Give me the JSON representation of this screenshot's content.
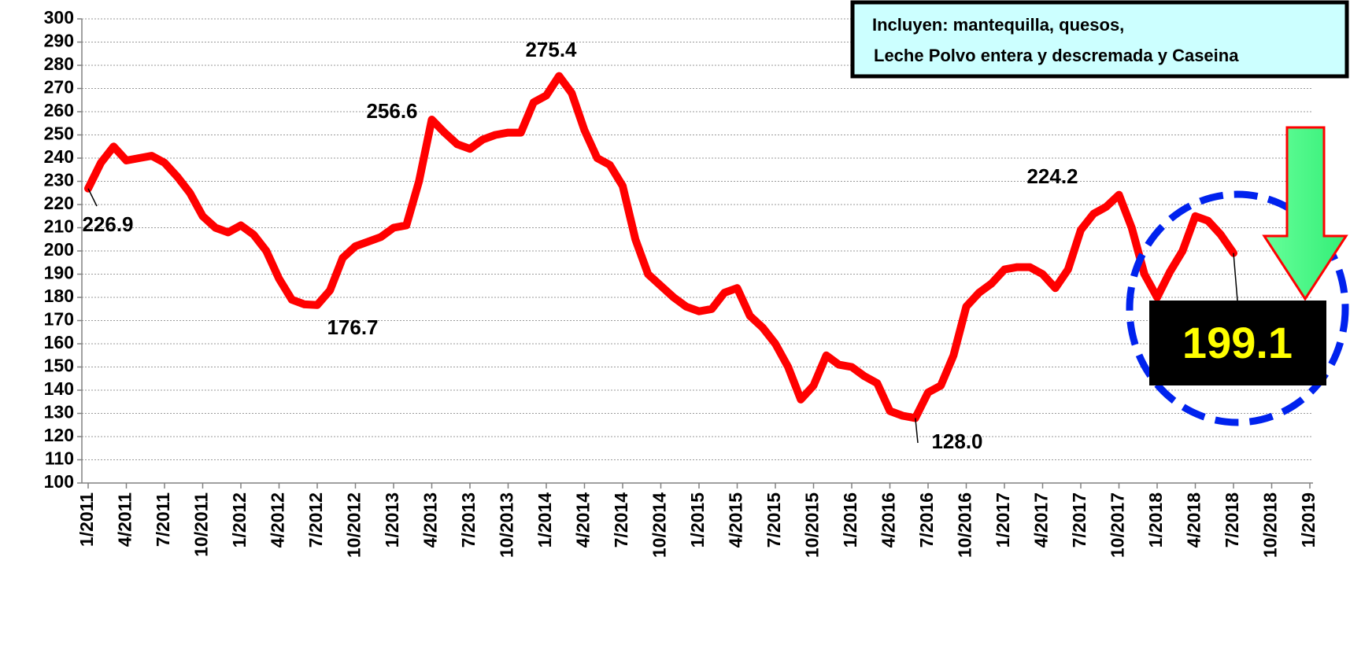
{
  "chart_data": {
    "type": "line",
    "categories": [
      "1/2011",
      null,
      null,
      "4/2011",
      null,
      null,
      "7/2011",
      null,
      null,
      "10/2011",
      null,
      null,
      "1/2012",
      null,
      null,
      "4/2012",
      null,
      null,
      "7/2012",
      null,
      null,
      "10/2012",
      null,
      null,
      "1/2013",
      null,
      null,
      "4/2013",
      null,
      null,
      "7/2013",
      null,
      null,
      "10/2013",
      null,
      null,
      "1/2014",
      null,
      null,
      "4/2014",
      null,
      null,
      "7/2014",
      null,
      null,
      "10/2014",
      null,
      null,
      "1/2015",
      null,
      null,
      "4/2015",
      null,
      null,
      "7/2015",
      null,
      null,
      "10/2015",
      null,
      null,
      "1/2016",
      null,
      null,
      "4/2016",
      null,
      null,
      "7/2016",
      null,
      null,
      "10/2016",
      null,
      null,
      "1/2017",
      null,
      null,
      "4/2017",
      null,
      null,
      "7/2017",
      null,
      null,
      "10/2017",
      null,
      null,
      "1/2018",
      null,
      null,
      "4/2018",
      null,
      null,
      "7/2018",
      null,
      null,
      "10/2018",
      null,
      null,
      "1/2019"
    ],
    "series": [
      {
        "color": "#ff0000",
        "values": [
          226.9,
          238,
          245,
          239,
          240,
          241,
          238,
          232,
          225,
          215,
          210,
          208,
          211,
          207,
          200,
          188,
          179,
          177,
          176.7,
          183,
          197,
          202,
          204,
          206,
          210,
          211,
          230,
          256.6,
          251,
          246,
          244,
          248,
          250,
          251,
          251,
          264,
          267,
          275.4,
          268,
          252,
          240,
          237,
          228,
          205,
          190,
          185,
          180,
          176,
          174,
          175,
          182,
          184,
          172,
          167,
          160,
          150,
          136,
          142,
          155,
          151,
          150,
          146,
          143,
          131,
          129,
          128,
          139,
          142,
          155,
          176,
          182,
          186,
          192,
          193,
          193,
          190,
          184,
          192,
          209,
          216,
          219,
          224.2,
          210,
          190,
          180,
          191,
          200,
          215,
          213,
          207,
          199.1,
          null,
          null,
          null,
          null,
          null,
          null
        ],
        "value_labels": [
          "226.9",
          null,
          null,
          null,
          null,
          null,
          null,
          null,
          null,
          null,
          null,
          null,
          null,
          null,
          null,
          null,
          null,
          null,
          "176.7",
          null,
          null,
          null,
          null,
          null,
          null,
          null,
          null,
          "256.6",
          null,
          null,
          null,
          null,
          null,
          null,
          null,
          null,
          null,
          "275.4",
          null,
          null,
          null,
          null,
          null,
          null,
          null,
          null,
          null,
          null,
          null,
          null,
          null,
          null,
          null,
          null,
          null,
          null,
          null,
          null,
          null,
          null,
          null,
          null,
          null,
          null,
          null,
          "128.0",
          null,
          null,
          null,
          null,
          null,
          null,
          null,
          null,
          null,
          null,
          null,
          null,
          null,
          null,
          null,
          "224.2",
          null,
          null,
          null,
          null,
          null,
          null,
          null,
          null,
          "199.1",
          null,
          null,
          null,
          null,
          null,
          null
        ]
      }
    ],
    "ylim": [
      100,
      300
    ],
    "yticks": [
      100,
      110,
      120,
      130,
      140,
      150,
      160,
      170,
      180,
      190,
      200,
      210,
      220,
      230,
      240,
      250,
      260,
      270,
      280,
      290,
      300
    ],
    "grid": true,
    "note": [
      "Incluyen: mantequilla, quesos,",
      "Leche Polvo entera y descremada y Caseina"
    ]
  }
}
